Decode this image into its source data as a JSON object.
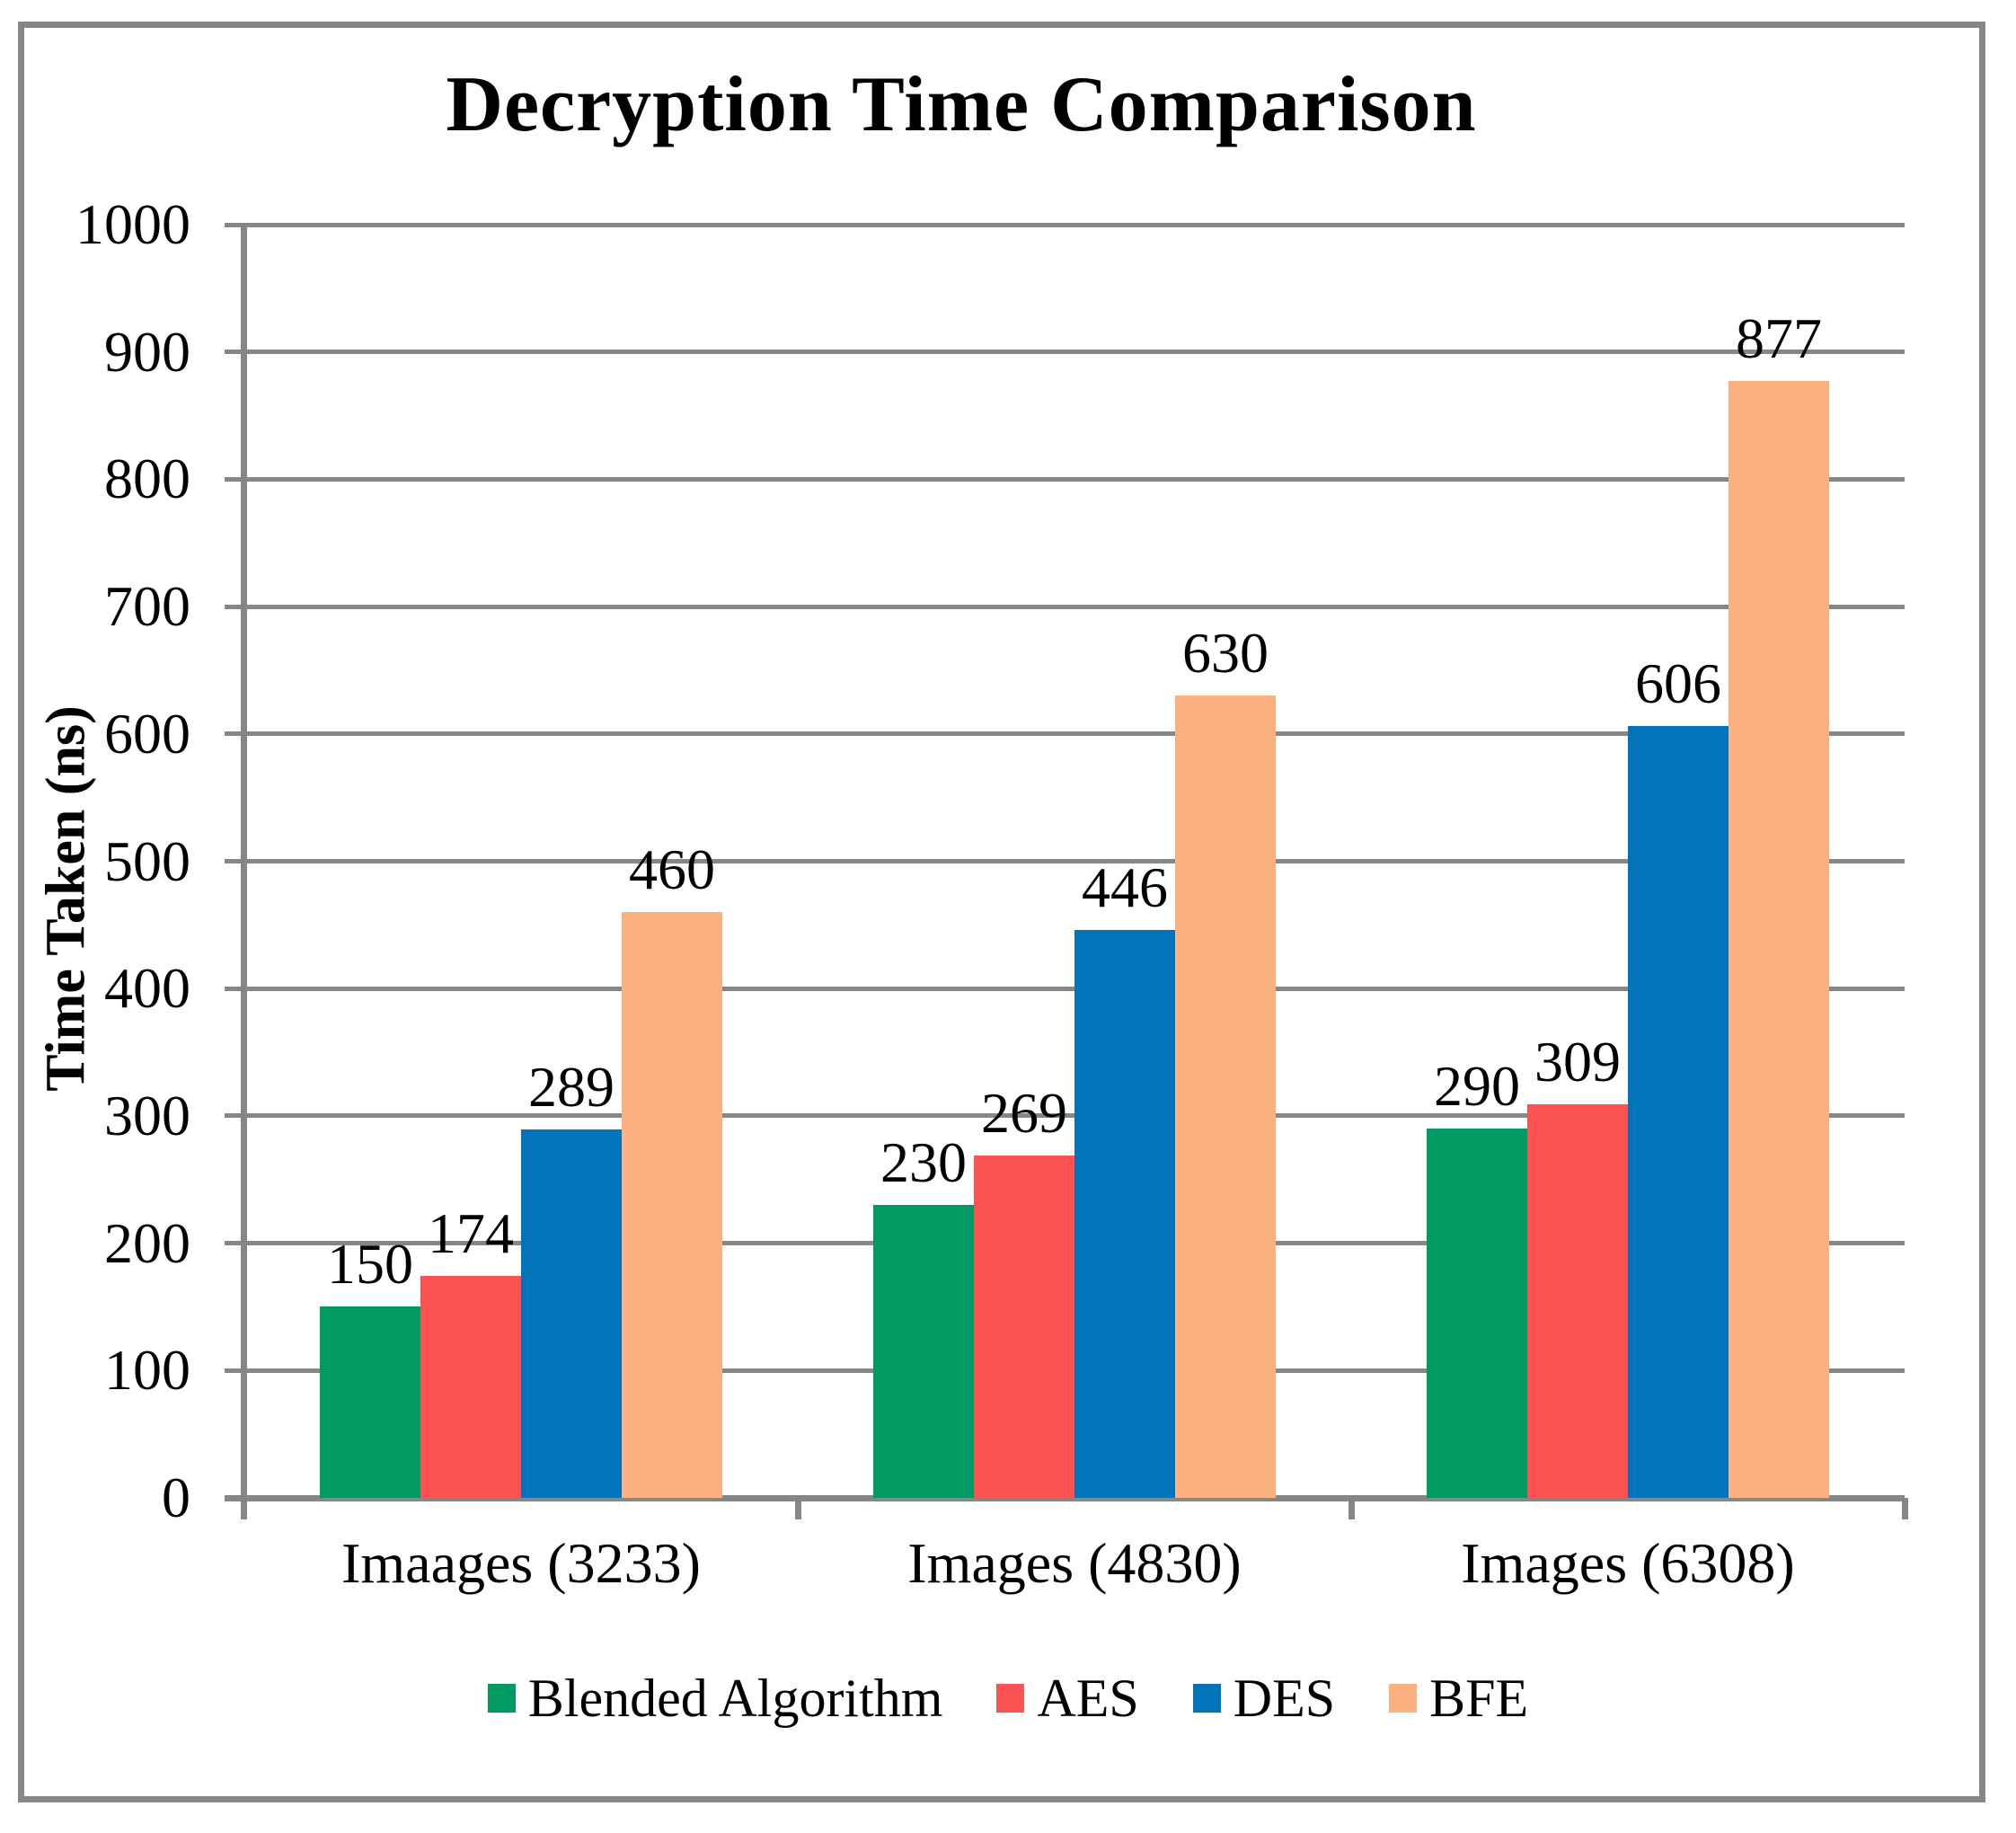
{
  "chart_data": {
    "type": "bar",
    "title": "Decryption Time Comparison",
    "ylabel": "Time Taken (ns)",
    "xlabel": "",
    "categories": [
      "Imaages (3233)",
      "Images (4830)",
      "Images (6308)"
    ],
    "series": [
      {
        "name": "Blended Algorithm",
        "color": "#009A62",
        "values": [
          150,
          230,
          290
        ]
      },
      {
        "name": "AES",
        "color": "#FD5254",
        "values": [
          174,
          269,
          309
        ]
      },
      {
        "name": "DES",
        "color": "#0374BA",
        "values": [
          289,
          446,
          606
        ]
      },
      {
        "name": "BFE",
        "color": "#FCB180",
        "values": [
          460,
          630,
          877
        ]
      }
    ],
    "ylim": [
      0,
      1000
    ],
    "ytick_step": 100,
    "grid": true,
    "data_labels": true,
    "legend_position": "bottom",
    "gridline_color": "#868686",
    "axis_color": "#868686",
    "border_color": "#868686",
    "text_color": "#000000",
    "background_color": "#FFFFFF"
  }
}
